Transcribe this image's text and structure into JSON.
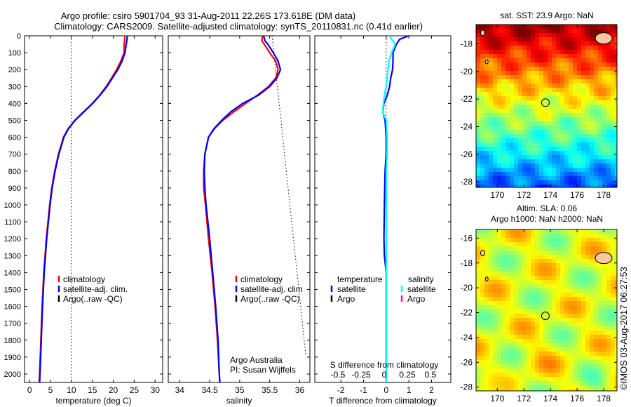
{
  "title_line1": "Argo profile: csiro 5901704_93 31-Aug-2011 22.26S 173.618E (DM data)",
  "title_line2": "Climatology: CARS2009. Satellite-adjusted climatology: synTS_20110831.nc (0.41d earlier)",
  "colors": {
    "climatology": "#ff0000",
    "satellite": "#0000ff",
    "argo": "#000000",
    "sal_satellite": "#00ffff",
    "sal_argo": "#ff00ff",
    "land": "#f8c8a0"
  },
  "depth_axis": {
    "ticks": [
      0,
      100,
      200,
      300,
      400,
      500,
      600,
      700,
      800,
      900,
      1000,
      1100,
      1200,
      1300,
      1400,
      1500,
      1600,
      1700,
      1800,
      1900,
      2000
    ],
    "range": [
      0,
      2050
    ]
  },
  "chart_data": [
    {
      "type": "line",
      "xlabel": "temperature (deg C)",
      "xticks": [
        0,
        5,
        10,
        15,
        20,
        25,
        30
      ],
      "xlim": [
        -1.2,
        31.8
      ],
      "reference_line": 10,
      "legend": [
        "climatology",
        "satellite-adj. clim.",
        "Argo(..raw -QC)"
      ],
      "depth": [
        0,
        50,
        100,
        150,
        200,
        250,
        300,
        350,
        400,
        450,
        500,
        550,
        600,
        700,
        800,
        900,
        1000,
        1200,
        1400,
        1600,
        1800,
        2000,
        2050
      ],
      "series": [
        {
          "name": "climatology",
          "values": [
            22.8,
            22.6,
            22.6,
            21.8,
            20.8,
            19.6,
            18.3,
            16.8,
            15.0,
            12.9,
            10.8,
            9.2,
            8.1,
            6.9,
            6.0,
            5.3,
            4.8,
            4.0,
            3.4,
            3.0,
            2.7,
            2.4,
            2.3
          ]
        },
        {
          "name": "satellite-adj. clim.",
          "values": [
            23.4,
            23.1,
            22.8,
            22.1,
            21.1,
            19.8,
            18.5,
            16.9,
            15.1,
            13.0,
            10.9,
            9.3,
            8.2,
            7.0,
            6.1,
            5.4,
            4.9,
            4.1,
            3.5,
            3.1,
            2.8,
            2.5,
            2.4
          ]
        }
      ]
    },
    {
      "type": "line",
      "xlabel": "salinity",
      "xticks": [
        34,
        34.5,
        35,
        35.5,
        36
      ],
      "xlim": [
        33.81,
        36.17
      ],
      "legend": [
        "climatology",
        "satellite-adj. clim",
        "Argo(..raw -QC)"
      ],
      "annotation": [
        "Argo Australia",
        "PI: Susan Wijffels"
      ],
      "depth": [
        0,
        30,
        50,
        100,
        150,
        200,
        250,
        300,
        350,
        400,
        450,
        500,
        550,
        600,
        700,
        800,
        900,
        1000,
        1200,
        1400,
        1600,
        1800,
        2000,
        2050
      ],
      "series": [
        {
          "name": "climatology",
          "values": [
            35.38,
            35.37,
            35.41,
            35.5,
            35.6,
            35.64,
            35.6,
            35.48,
            35.3,
            35.1,
            34.9,
            34.72,
            34.58,
            34.48,
            34.42,
            34.4,
            34.4,
            34.43,
            34.48,
            34.54,
            34.59,
            34.63,
            34.66,
            34.67
          ]
        },
        {
          "name": "satellite-adj. clim.",
          "values": [
            35.4,
            35.42,
            35.47,
            35.56,
            35.64,
            35.68,
            35.62,
            35.5,
            35.32,
            35.05,
            34.85,
            34.7,
            34.57,
            34.48,
            34.42,
            34.41,
            34.42,
            34.44,
            34.5,
            34.55,
            34.6,
            34.64,
            34.66,
            34.67
          ]
        }
      ]
    },
    {
      "type": "line",
      "xlabel": "T difference from climatology",
      "xticks": [
        -2,
        -1,
        0,
        1,
        2
      ],
      "xlim": [
        -3.15,
        2.85
      ],
      "x2label": "S difference from climatology",
      "x2ticks": [
        "-0.5",
        "-0.25",
        "0",
        "0.25",
        "0.5"
      ],
      "legend": {
        "temperature": "temperature",
        "salinity": "salinity",
        "t_sat": "satellite",
        "t_argo": "Argo",
        "s_sat": "satellite",
        "s_argo": "Argo"
      },
      "depth": [
        0,
        20,
        50,
        100,
        150,
        200,
        250,
        300,
        350,
        400,
        450,
        500,
        600,
        700,
        800,
        1000,
        1200,
        1300,
        1400,
        1600,
        2000,
        2050
      ],
      "series": [
        {
          "name": "temperature satellite",
          "values": [
            1.0,
            0.6,
            0.45,
            0.3,
            0.3,
            0.28,
            0.2,
            0.15,
            0.05,
            -0.1,
            -0.15,
            -0.05,
            0.0,
            0.0,
            -0.05,
            -0.08,
            -0.1,
            -0.08,
            0.0,
            0.0,
            0.0,
            0.0
          ]
        },
        {
          "name": "salinity satellite",
          "values": [
            0.04,
            0.06,
            0.1,
            0.06,
            0.03,
            0.02,
            0.01,
            0.0,
            -0.02,
            -0.03,
            -0.04,
            0.0,
            0.01,
            0.01,
            0.0,
            0.0,
            0.0,
            0.0,
            0.0,
            0.0,
            0.0,
            0.0
          ]
        }
      ]
    }
  ],
  "maps": [
    {
      "title": "sat. SST: 23.9 Argo: NaN",
      "lon_ticks": [
        "170",
        "172",
        "174",
        "176",
        "178"
      ],
      "lat_ticks": [
        "-18",
        "-20",
        "-22",
        "-24",
        "-26",
        "-28"
      ],
      "marker": {
        "lon": 173.618,
        "lat": -22.26
      }
    },
    {
      "title_line1": "Altim. SLA: 0.06",
      "title_line2": "Argo h1000: NaN h2000: NaN",
      "lon_ticks": [
        "170",
        "172",
        "174",
        "176",
        "178"
      ],
      "lat_ticks": [
        "-16",
        "-18",
        "-20",
        "-22",
        "-24",
        "-26",
        "-28"
      ],
      "marker": {
        "lon": 173.618,
        "lat": -22.26
      }
    }
  ],
  "credit": "©IMOS 03-Aug-2017 06:27:53"
}
